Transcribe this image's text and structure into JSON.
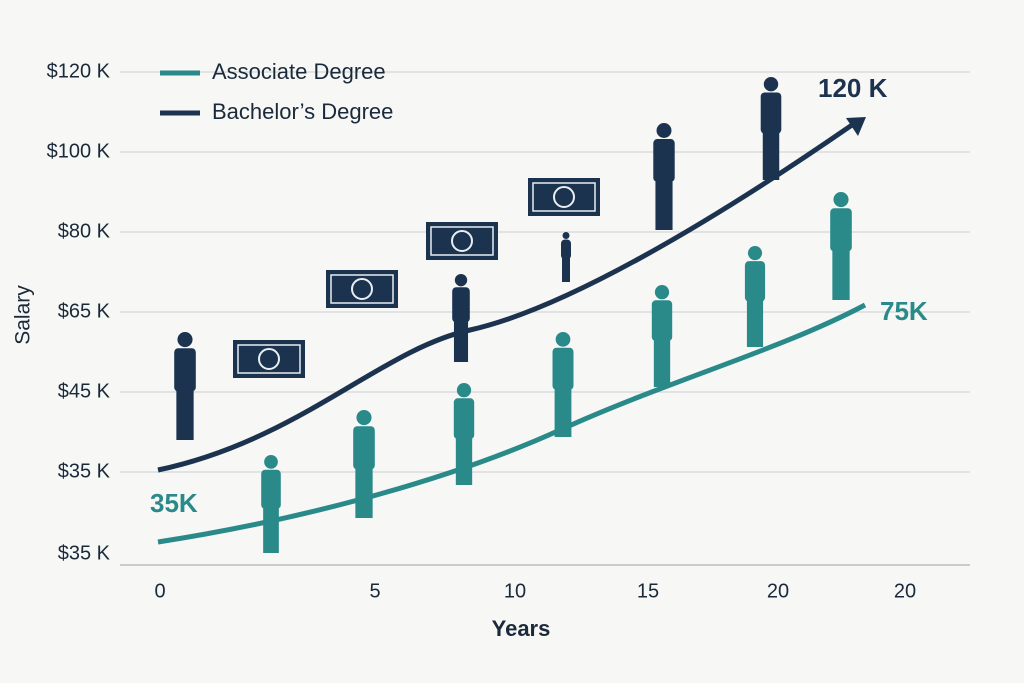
{
  "chart_data": {
    "type": "line",
    "y_axis_label": "Salary",
    "x_axis_label": "Years",
    "y_tick_labels": [
      "$120 K",
      "$100 K",
      "$80 K",
      "$65 K",
      "$45 K",
      "$35 K",
      "$35 K"
    ],
    "x_tick_labels": [
      "0",
      "5",
      "10",
      "15",
      "20",
      "20"
    ],
    "grid": true,
    "series": [
      {
        "name": "Associate Degree",
        "color": "#2a8a8a"
      },
      {
        "name": "Bachelor’s Degree",
        "color": "#1c3350"
      }
    ],
    "annotations": [
      {
        "text": "35K",
        "color": "#2a8a8a"
      },
      {
        "text": "120 K",
        "color": "#1c3350"
      },
      {
        "text": "75K",
        "color": "#2a8a8a"
      }
    ]
  }
}
